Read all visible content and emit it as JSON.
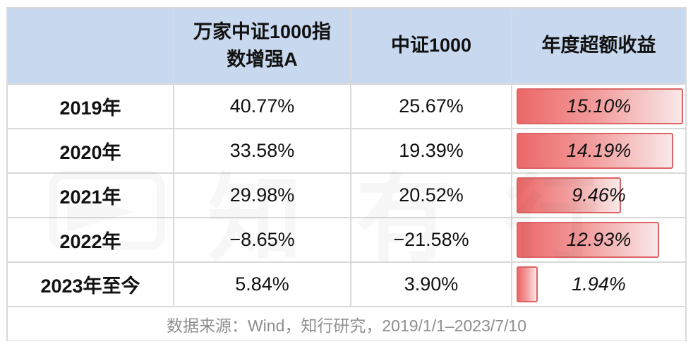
{
  "colors": {
    "header_bg": "#c8d8ee",
    "border": "#d9d9d9",
    "bar_border": "#dd6464",
    "bar_gradient_start": "#ec6868",
    "bar_gradient_end": "#f9e9e9",
    "footer_text": "#8e8e8e"
  },
  "header": {
    "col_year": "",
    "col_fund_line1": "万家中证1000指",
    "col_fund_line2": "数增强A",
    "col_index": "中证1000",
    "col_excess": "年度超额收益"
  },
  "rows": [
    {
      "year": "2019年",
      "fund": "40.77%",
      "index": "25.67%",
      "excess": "15.10%",
      "excess_value": 15.1
    },
    {
      "year": "2020年",
      "fund": "33.58%",
      "index": "19.39%",
      "excess": "14.19%",
      "excess_value": 14.19
    },
    {
      "year": "2021年",
      "fund": "29.98%",
      "index": "20.52%",
      "excess": "9.46%",
      "excess_value": 9.46
    },
    {
      "year": "2022年",
      "fund": "−8.65%",
      "index": "−21.58%",
      "excess": "12.93%",
      "excess_value": 12.93
    },
    {
      "year": "2023年至今",
      "fund": "5.84%",
      "index": "3.90%",
      "excess": "1.94%",
      "excess_value": 1.94
    }
  ],
  "footer": {
    "source": "数据来源：Wind，知行研究，2019/1/1–2023/7/10"
  },
  "watermark": "知有行",
  "chart_data": {
    "type": "table",
    "title": "万家中证1000指数增强A vs 中证1000 年度收益对比",
    "columns": [
      "",
      "万家中证1000指数增强A",
      "中证1000",
      "年度超额收益"
    ],
    "categories": [
      "2019年",
      "2020年",
      "2021年",
      "2022年",
      "2023年至今"
    ],
    "series": [
      {
        "name": "万家中证1000指数增强A",
        "values": [
          40.77,
          33.58,
          29.98,
          -8.65,
          5.84
        ]
      },
      {
        "name": "中证1000",
        "values": [
          25.67,
          19.39,
          20.52,
          -21.58,
          3.9
        ]
      },
      {
        "name": "年度超额收益",
        "values": [
          15.1,
          14.19,
          9.46,
          12.93,
          1.94
        ],
        "render": "bar",
        "bar_color": "#ec6868",
        "bar_max": 15.1
      }
    ],
    "footnote": "数据来源：Wind，知行研究，2019/1/1–2023/7/10",
    "legend_position": "none",
    "grid": true
  }
}
